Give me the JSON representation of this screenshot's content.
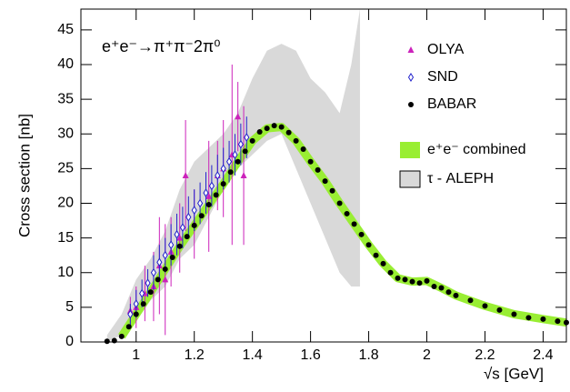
{
  "chart_data": {
    "type": "scatter",
    "title": "e⁺e⁻→π⁺π⁻2π⁰",
    "xlabel": "√s  [GeV]",
    "ylabel": "Cross section [nb]",
    "xlim": [
      0.81,
      2.48
    ],
    "ylim": [
      0,
      48
    ],
    "xticks": [
      1,
      1.2,
      1.4,
      1.6,
      1.8,
      2,
      2.2,
      2.4
    ],
    "yticks": [
      0,
      5,
      10,
      15,
      20,
      25,
      30,
      35,
      40,
      45
    ],
    "series": [
      {
        "name": "τ - ALEPH",
        "style": "band",
        "color": "#d9d9d9",
        "x": [
          0.9,
          0.95,
          1.0,
          1.05,
          1.1,
          1.15,
          1.2,
          1.25,
          1.3,
          1.35,
          1.4,
          1.45,
          1.5,
          1.55,
          1.6,
          1.65,
          1.7,
          1.74,
          1.77
        ],
        "lower": [
          0,
          1,
          3,
          6,
          8,
          12,
          14,
          18,
          22,
          25,
          27,
          29,
          30,
          25,
          20,
          15,
          10,
          8,
          8
        ],
        "upper": [
          1,
          4,
          9,
          12,
          16,
          22,
          26,
          28,
          30,
          33,
          38,
          42,
          43,
          42,
          38,
          36,
          33,
          40,
          48
        ]
      },
      {
        "name": "e⁺e⁻ combined",
        "style": "line",
        "color": "#99ee33",
        "x": [
          0.95,
          1.0,
          1.05,
          1.1,
          1.15,
          1.2,
          1.25,
          1.3,
          1.35,
          1.4,
          1.45,
          1.5,
          1.55,
          1.6,
          1.65,
          1.7,
          1.75,
          1.8,
          1.85,
          1.9,
          1.95,
          2.0,
          2.05,
          2.1,
          2.2,
          2.3,
          2.4,
          2.48
        ],
        "values": [
          0.8,
          4,
          7.2,
          10.5,
          13.8,
          16.8,
          19.8,
          22.8,
          26,
          29,
          30.8,
          31,
          29,
          26,
          23.2,
          20,
          17,
          14,
          11.3,
          9.2,
          8.7,
          8.8,
          7.8,
          6.7,
          5.2,
          4,
          3.3,
          2.8
        ]
      },
      {
        "name": "OLYA",
        "style": "points",
        "marker": "triangle",
        "color": "#cc22bb",
        "x": [
          0.98,
          1.0,
          1.03,
          1.06,
          1.08,
          1.1,
          1.12,
          1.15,
          1.17,
          1.2,
          1.25,
          1.28,
          1.3,
          1.33,
          1.35,
          1.37
        ],
        "values": [
          4.5,
          5,
          7,
          8,
          11,
          9,
          13,
          15,
          24,
          17,
          21,
          24,
          25,
          27,
          32.5,
          24
        ],
        "errors": [
          2,
          3,
          4,
          5,
          7,
          8,
          5,
          5,
          8,
          5,
          8,
          5,
          7,
          13,
          5,
          10
        ]
      },
      {
        "name": "SND",
        "style": "points",
        "marker": "diamond",
        "color": "#2222cc",
        "x": [
          0.98,
          1.0,
          1.02,
          1.04,
          1.06,
          1.08,
          1.1,
          1.12,
          1.14,
          1.16,
          1.18,
          1.2,
          1.22,
          1.24,
          1.26,
          1.28,
          1.3,
          1.32,
          1.34,
          1.36,
          1.38
        ],
        "values": [
          4,
          5.5,
          7,
          8.5,
          10,
          11.5,
          12.5,
          14,
          15.5,
          16.5,
          18,
          19,
          20,
          21.5,
          22.5,
          24,
          25,
          26,
          27,
          28.5,
          29.5
        ],
        "errors": [
          1.5,
          2,
          2,
          2,
          2.5,
          2.5,
          2.5,
          3,
          3,
          3,
          3,
          3,
          3,
          3,
          3,
          3,
          3,
          3,
          3,
          3,
          3
        ]
      },
      {
        "name": "BABAR",
        "style": "points",
        "marker": "circle",
        "color": "#000000",
        "x": [
          0.9,
          0.925,
          0.95,
          0.975,
          1.0,
          1.025,
          1.05,
          1.075,
          1.1,
          1.125,
          1.15,
          1.175,
          1.2,
          1.225,
          1.25,
          1.275,
          1.3,
          1.325,
          1.35,
          1.375,
          1.4,
          1.425,
          1.45,
          1.475,
          1.5,
          1.525,
          1.55,
          1.575,
          1.6,
          1.625,
          1.65,
          1.675,
          1.7,
          1.725,
          1.75,
          1.775,
          1.8,
          1.825,
          1.85,
          1.875,
          1.9,
          1.925,
          1.95,
          1.975,
          2.0,
          2.025,
          2.05,
          2.075,
          2.1,
          2.15,
          2.2,
          2.25,
          2.3,
          2.35,
          2.4,
          2.45,
          2.48
        ],
        "values": [
          0.1,
          0.2,
          0.8,
          2.2,
          4,
          5.5,
          7.2,
          9,
          10.5,
          12.2,
          13.8,
          15.2,
          16.8,
          18.2,
          19.8,
          21.2,
          22.8,
          24.5,
          26,
          27.5,
          29,
          30.3,
          30.8,
          31.2,
          31,
          30.2,
          29,
          27.8,
          26,
          24.8,
          23.2,
          21.8,
          20,
          18.5,
          17,
          15.5,
          14,
          12.5,
          11.3,
          10,
          9.2,
          9,
          8.7,
          8.5,
          8.8,
          8,
          7.8,
          7.2,
          6.7,
          6,
          5.2,
          4.6,
          4,
          3.5,
          3.3,
          3,
          2.8
        ]
      }
    ]
  }
}
